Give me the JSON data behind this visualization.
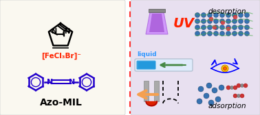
{
  "bg_left": "#faf8f0",
  "bg_right": "#e8e0f0",
  "dashed_line_color": "#ff3333",
  "title_text": "Azo-MIL",
  "anion_text": "[FeCl₃Br]⁻",
  "anion_color": "#ff2200",
  "uv_text": "UV",
  "uv_color": "#ff2200",
  "liquid_text": "liquid",
  "liquid_color": "#3399ff",
  "desorption_text": "desorption",
  "adsorption_text": "adsorption",
  "label_color": "#000000",
  "magnet_red": "#dd2200",
  "magnet_gray": "#aaaaaa",
  "arrow_color": "#f5a050",
  "green_arrow_color": "#448844",
  "tube_color": "#ccddff",
  "tube_liquid_color": "#2299dd",
  "figsize": [
    3.78,
    1.68
  ],
  "dpi": 100
}
